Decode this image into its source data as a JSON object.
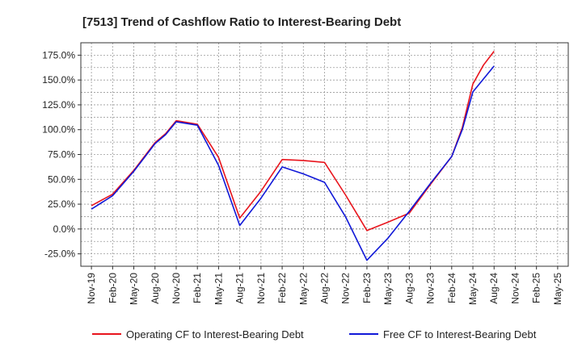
{
  "chart_data": {
    "type": "line",
    "title": "[7513]  Trend of Cashflow Ratio to Interest-Bearing Debt",
    "xlabel": "",
    "ylabel": "",
    "categories": [
      "Nov-19",
      "Feb-20",
      "May-20",
      "Aug-20",
      "Nov-20",
      "Feb-21",
      "May-21",
      "Aug-21",
      "Nov-21",
      "Feb-22",
      "May-22",
      "Aug-22",
      "Nov-22",
      "Feb-23",
      "May-23",
      "Aug-23",
      "Nov-23",
      "Feb-24",
      "May-24",
      "Aug-24",
      "Nov-24",
      "Feb-25",
      "May-25"
    ],
    "y_ticks": [
      "175.0%",
      "150.0%",
      "125.0%",
      "100.0%",
      "75.0%",
      "50.0%",
      "25.0%",
      "0.0%",
      "-25.0%"
    ],
    "ylim": [
      -37.5,
      187.5
    ],
    "grid": true,
    "legend_position": "bottom",
    "series": [
      {
        "name": "Operating CF to Interest-Bearing Debt",
        "color": "#e8141c",
        "points": [
          {
            "i": 0,
            "y": 23.5
          },
          {
            "i": 1,
            "y": 35.0
          },
          {
            "i": 2,
            "y": 59.0
          },
          {
            "i": 3,
            "y": 87.0
          },
          {
            "i": 3.5,
            "y": 96.0
          },
          {
            "i": 4,
            "y": 109.0
          },
          {
            "i": 5,
            "y": 105.5
          },
          {
            "i": 6,
            "y": 72.0
          },
          {
            "i": 7,
            "y": 11.0
          },
          {
            "i": 8,
            "y": 38.0
          },
          {
            "i": 9,
            "y": 70.0
          },
          {
            "i": 10,
            "y": 69.0
          },
          {
            "i": 11,
            "y": 67.0
          },
          {
            "i": 12,
            "y": 34.0
          },
          {
            "i": 13,
            "y": -1.5
          },
          {
            "i": 14,
            "y": 7.0
          },
          {
            "i": 15,
            "y": 16.0
          },
          {
            "i": 16,
            "y": 45.0
          },
          {
            "i": 17,
            "y": 73.0
          },
          {
            "i": 17.5,
            "y": 102.0
          },
          {
            "i": 18,
            "y": 146.0
          },
          {
            "i": 18.5,
            "y": 165.0
          },
          {
            "i": 19,
            "y": 179.0
          }
        ]
      },
      {
        "name": "Free CF to Interest-Bearing Debt",
        "color": "#1018d8",
        "points": [
          {
            "i": 0,
            "y": 20.0
          },
          {
            "i": 1,
            "y": 33.5
          },
          {
            "i": 2,
            "y": 58.0
          },
          {
            "i": 3,
            "y": 86.0
          },
          {
            "i": 3.5,
            "y": 95.0
          },
          {
            "i": 4,
            "y": 108.0
          },
          {
            "i": 5,
            "y": 104.5
          },
          {
            "i": 6,
            "y": 64.0
          },
          {
            "i": 7,
            "y": 3.5
          },
          {
            "i": 8,
            "y": 31.0
          },
          {
            "i": 9,
            "y": 62.5
          },
          {
            "i": 10,
            "y": 55.5
          },
          {
            "i": 11,
            "y": 47.0
          },
          {
            "i": 12,
            "y": 12.0
          },
          {
            "i": 13,
            "y": -31.5
          },
          {
            "i": 14,
            "y": -9.0
          },
          {
            "i": 15,
            "y": 18.0
          },
          {
            "i": 16,
            "y": 46.0
          },
          {
            "i": 17,
            "y": 73.0
          },
          {
            "i": 17.5,
            "y": 100.0
          },
          {
            "i": 18,
            "y": 138.0
          },
          {
            "i": 18.5,
            "y": 151.0
          },
          {
            "i": 19,
            "y": 164.0
          }
        ]
      }
    ]
  }
}
